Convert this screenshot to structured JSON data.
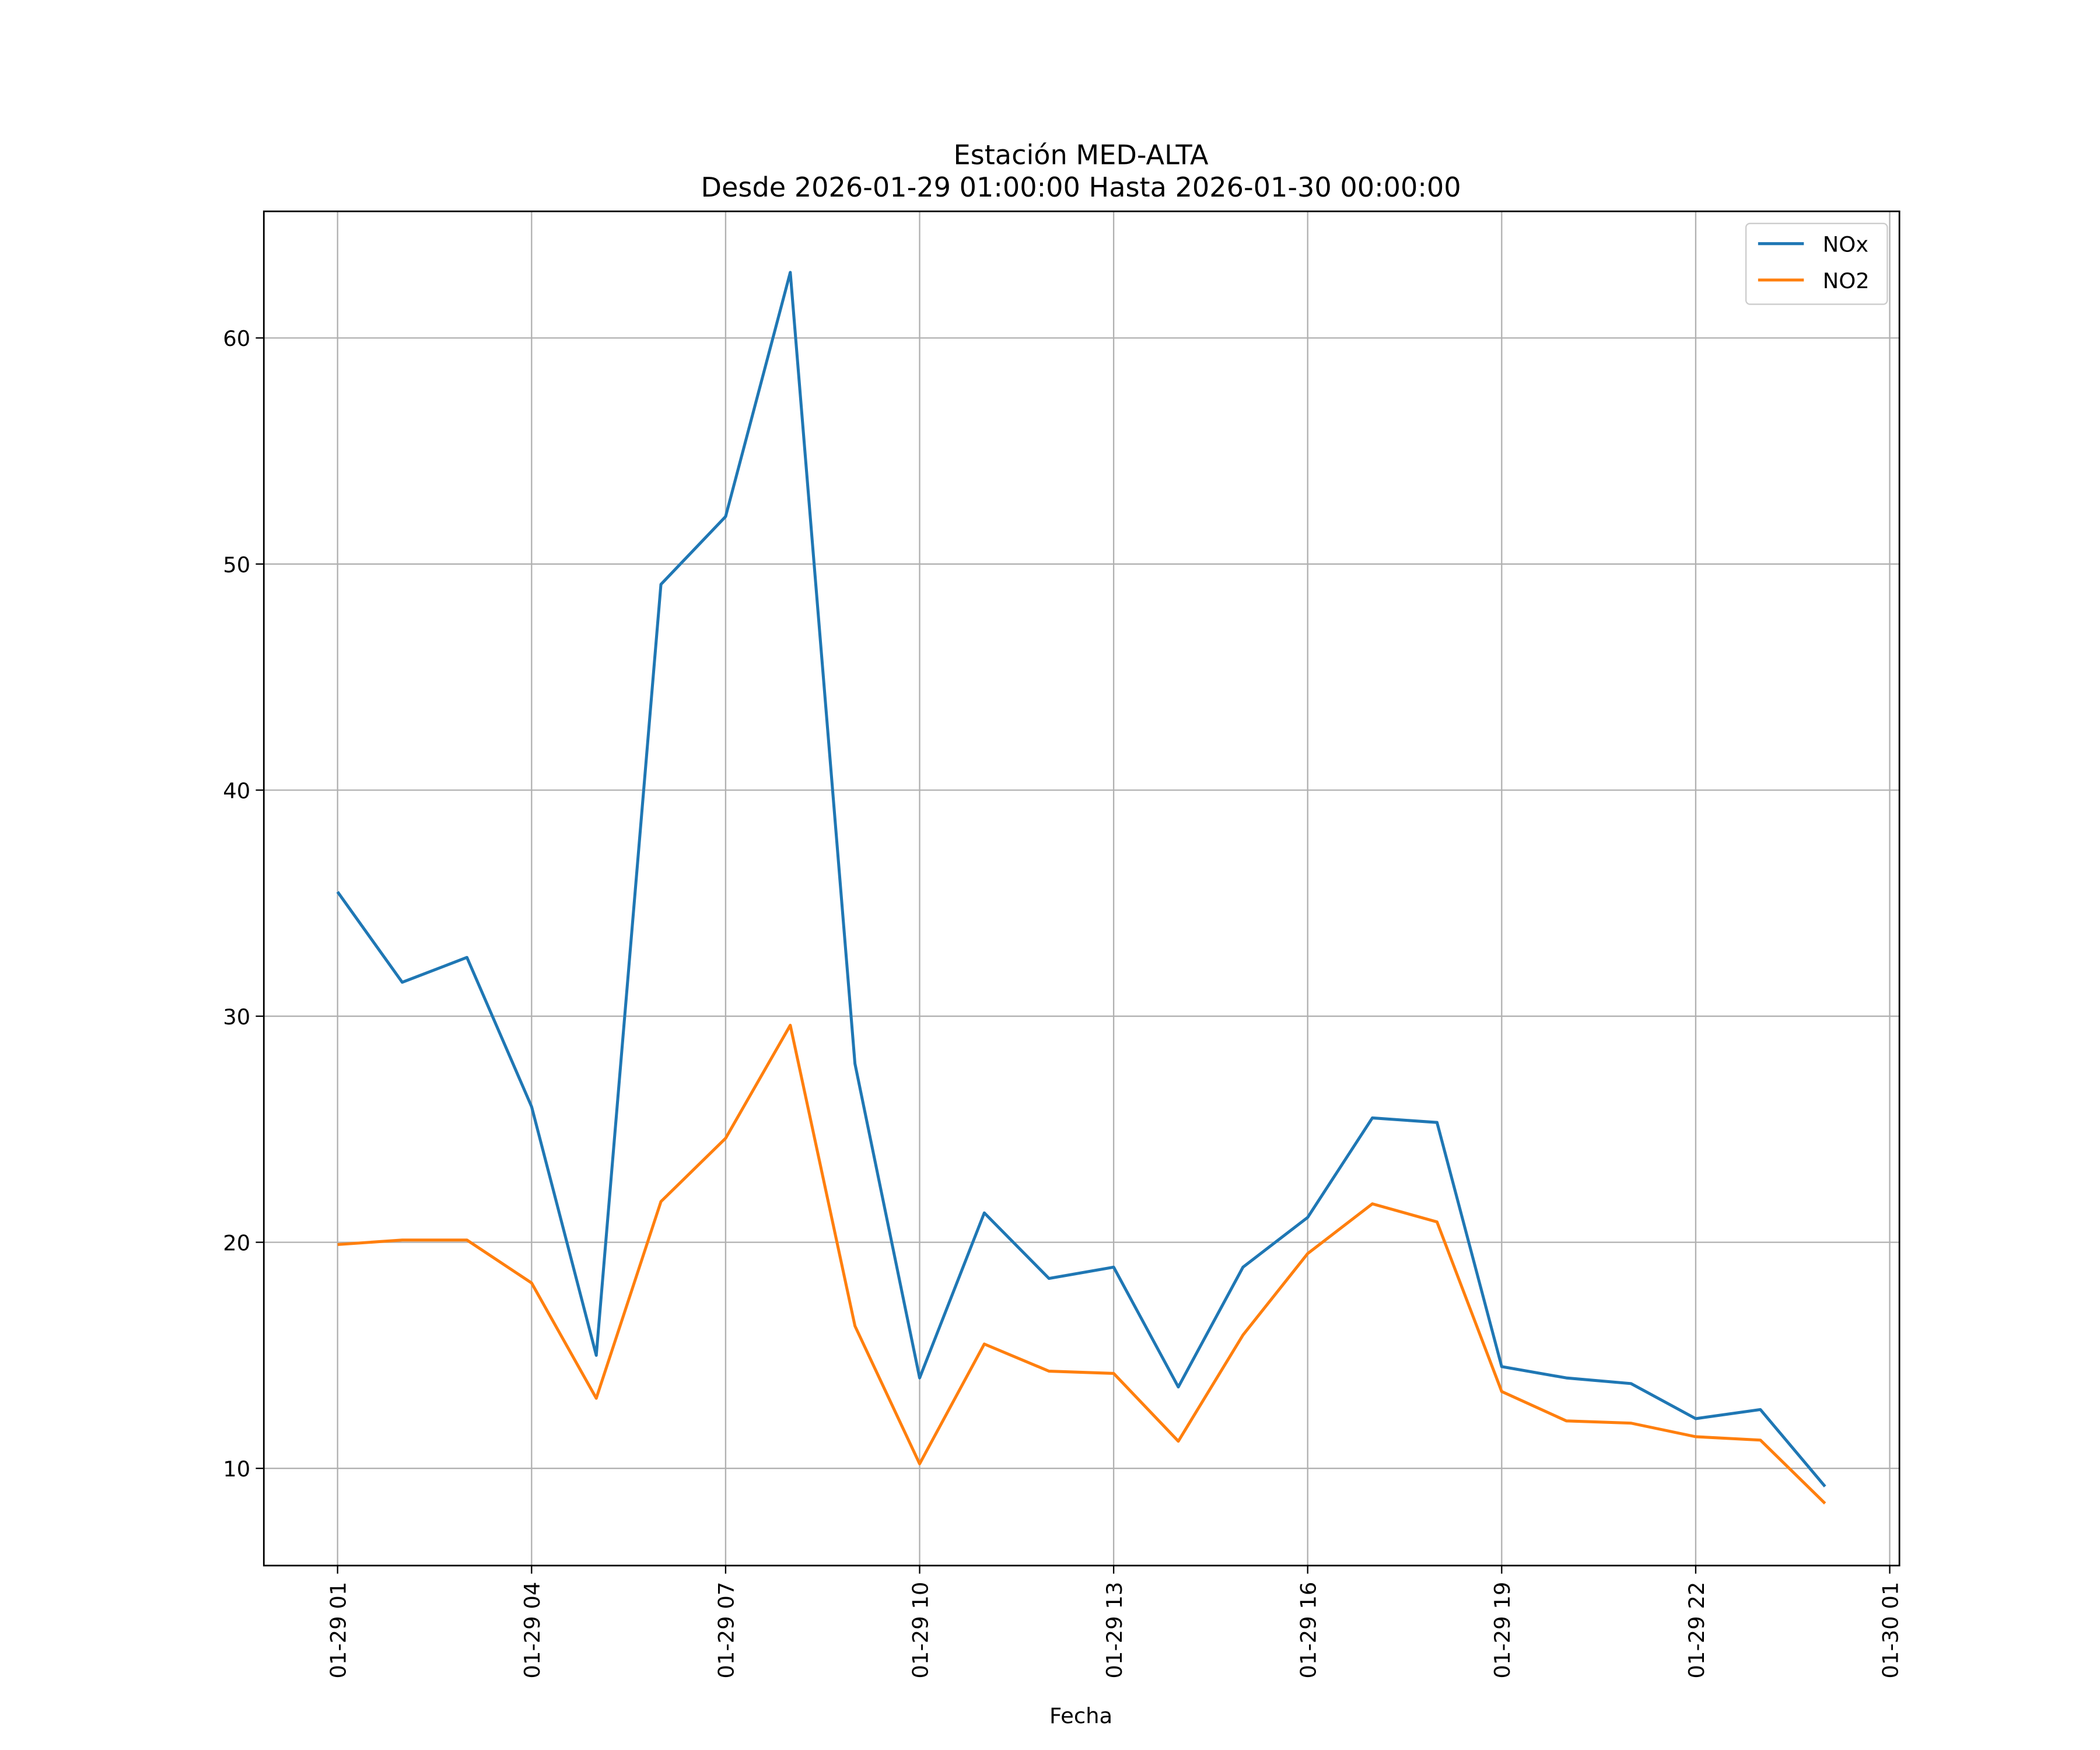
{
  "chart_data": {
    "type": "line",
    "title": "Estación MED-ALTA",
    "subtitle": "Desde 2026-01-29 01:00:00 Hasta 2026-01-30 00:00:00",
    "xlabel": "Fecha",
    "ylabel": "",
    "x_hours": [
      1,
      2,
      3,
      4,
      5,
      6,
      7,
      8,
      9,
      10,
      11,
      12,
      13,
      14,
      15,
      16,
      17,
      18,
      19,
      20,
      21,
      22,
      23,
      24
    ],
    "xlim": [
      -0.14,
      25.15
    ],
    "ylim": [
      5.7,
      65.6
    ],
    "x_ticks": [
      {
        "hour": 1,
        "label": "01-29 01"
      },
      {
        "hour": 4,
        "label": "01-29 04"
      },
      {
        "hour": 7,
        "label": "01-29 07"
      },
      {
        "hour": 10,
        "label": "01-29 10"
      },
      {
        "hour": 13,
        "label": "01-29 13"
      },
      {
        "hour": 16,
        "label": "01-29 16"
      },
      {
        "hour": 19,
        "label": "01-29 19"
      },
      {
        "hour": 22,
        "label": "01-29 22"
      },
      {
        "hour": 25,
        "label": "01-30 01"
      }
    ],
    "y_ticks": [
      {
        "value": 10,
        "label": "10"
      },
      {
        "value": 20,
        "label": "20"
      },
      {
        "value": 30,
        "label": "30"
      },
      {
        "value": 40,
        "label": "40"
      },
      {
        "value": 50,
        "label": "50"
      },
      {
        "value": 60,
        "label": "60"
      }
    ],
    "grid": true,
    "legend_position": "top-right",
    "series": [
      {
        "name": "NOx",
        "color": "#1f77b4",
        "values": [
          35.5,
          31.5,
          32.6,
          26.0,
          15.0,
          49.1,
          52.1,
          62.9,
          27.9,
          14.0,
          21.3,
          18.4,
          18.9,
          13.6,
          18.9,
          21.1,
          25.5,
          25.3,
          14.5,
          14.0,
          13.75,
          12.2,
          12.6,
          9.2
        ]
      },
      {
        "name": "NO2",
        "color": "#ff7f0e",
        "values": [
          19.9,
          20.1,
          20.1,
          18.2,
          13.1,
          21.8,
          24.6,
          29.6,
          16.3,
          10.2,
          15.5,
          14.3,
          14.2,
          11.2,
          15.9,
          19.5,
          21.7,
          20.9,
          13.4,
          12.1,
          12.0,
          11.4,
          11.25,
          8.45
        ]
      }
    ]
  }
}
